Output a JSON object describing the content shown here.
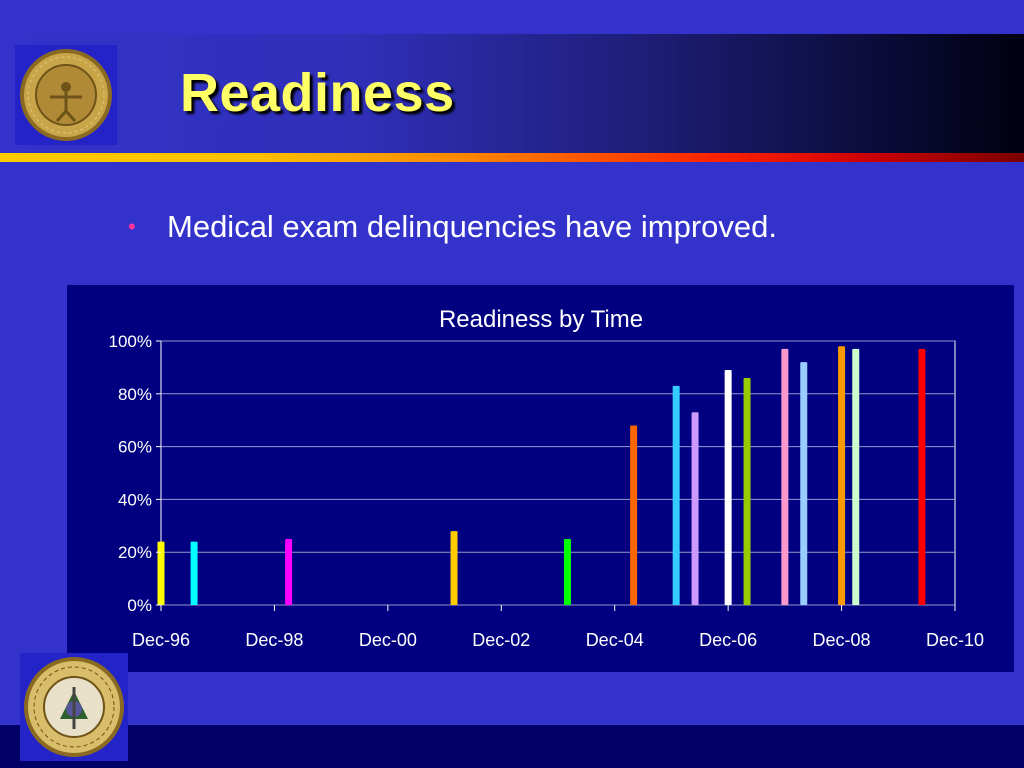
{
  "slide": {
    "title": "Readiness",
    "bullet": "Medical exam delinquencies have improved.",
    "colors": {
      "background": "#3333cc",
      "title_text": "#ffff66",
      "bullet_dot": "#ff3399",
      "chart_panel": "#000080"
    },
    "logos": {
      "top": "therapist-category-seal",
      "bottom": "us-public-health-service-seal"
    }
  },
  "chart_data": {
    "type": "bar",
    "title": "Readiness by Time",
    "xlabel": "",
    "ylabel": "",
    "ylim": [
      0,
      100
    ],
    "y_ticks": [
      "0%",
      "20%",
      "40%",
      "60%",
      "80%",
      "100%"
    ],
    "x_ticks": [
      "Dec-96",
      "Dec-98",
      "Dec-00",
      "Dec-02",
      "Dec-04",
      "Dec-06",
      "Dec-08",
      "Dec-10"
    ],
    "x_range": [
      "1996-12",
      "2010-12"
    ],
    "grid": true,
    "legend": "none",
    "bars": [
      {
        "date": "1996-12",
        "value": 24,
        "color": "#ffff00"
      },
      {
        "date": "1997-07",
        "value": 24,
        "color": "#00ffff"
      },
      {
        "date": "1999-03",
        "value": 25,
        "color": "#ff00ff"
      },
      {
        "date": "2002-02",
        "value": 28,
        "color": "#ffcc00"
      },
      {
        "date": "2004-02",
        "value": 25,
        "color": "#00ff00"
      },
      {
        "date": "2005-04",
        "value": 68,
        "color": "#ff6600"
      },
      {
        "date": "2006-01",
        "value": 83,
        "color": "#33ccff"
      },
      {
        "date": "2006-05",
        "value": 73,
        "color": "#cc99ff"
      },
      {
        "date": "2006-12",
        "value": 89,
        "color": "#ffffff"
      },
      {
        "date": "2007-04",
        "value": 86,
        "color": "#99cc00"
      },
      {
        "date": "2007-12",
        "value": 97,
        "color": "#ff99cc"
      },
      {
        "date": "2008-04",
        "value": 92,
        "color": "#99ccff"
      },
      {
        "date": "2008-12",
        "value": 98,
        "color": "#ff9900"
      },
      {
        "date": "2009-03",
        "value": 97,
        "color": "#ccffcc"
      },
      {
        "date": "2010-05",
        "value": 97,
        "color": "#ff0000"
      }
    ]
  }
}
